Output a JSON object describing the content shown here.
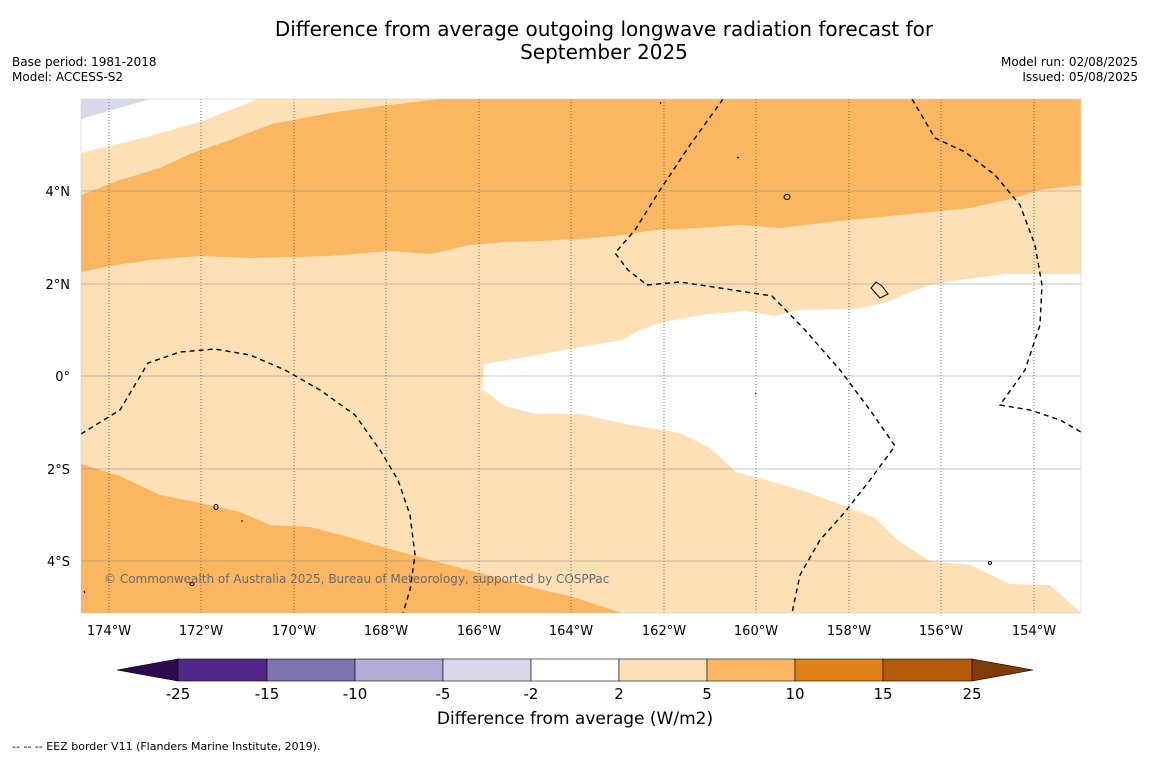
{
  "title_line1": "Difference from average outgoing longwave radiation forecast for",
  "title_line2": "September 2025",
  "base_period": "Base period: 1981-2018",
  "model": "Model: ACCESS-S2",
  "model_run": "Model run: 02/08/2025",
  "issued": "Issued: 05/08/2025",
  "lat_labels": [
    "4°N",
    "2°N",
    "0°",
    "2°S",
    "4°S"
  ],
  "lon_labels": [
    "174°W",
    "172°W",
    "170°W",
    "168°W",
    "166°W",
    "164°W",
    "162°W",
    "160°W",
    "158°W",
    "156°W",
    "154°W"
  ],
  "copyright": "© Commonwealth of Australia 2025, Bureau of Meteorology, supported by COSPPac",
  "colorbar": {
    "label": "Difference from average (W/m2)",
    "ticks": [
      "-25",
      "-15",
      "-10",
      "-5",
      "-2",
      "2",
      "5",
      "10",
      "15",
      "25"
    ],
    "colors": {
      "below_min": "#2d0a4e",
      "b1": "#522887",
      "b2": "#8072ad",
      "b3": "#b2abd3",
      "b4": "#d8daeb",
      "b5": "#ffffff",
      "b6": "#fde0b6",
      "b7": "#fbb662",
      "b8": "#e08314",
      "b9": "#b35a0b",
      "above_max": "#7f3b08"
    }
  },
  "legend_note": "--  --  -- EEZ border V11 (Flanders Marine Institute, 2019)."
}
